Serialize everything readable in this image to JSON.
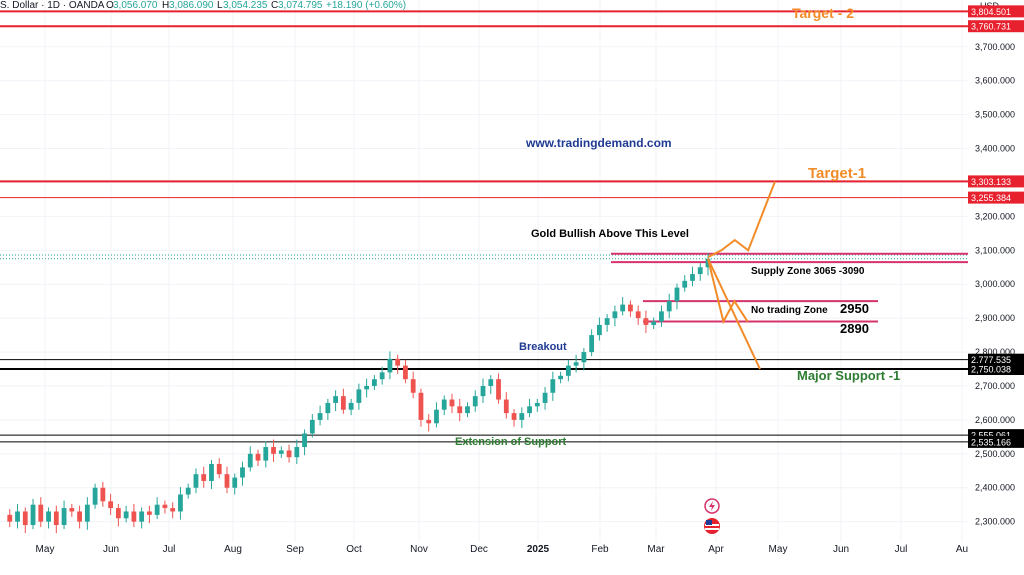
{
  "header": {
    "symbol_text": "S. Dollar · 1D · OANDA",
    "ohlc": {
      "open_label": "O",
      "open": "3,056.070",
      "high_label": "H",
      "high": "3,086.090",
      "low_label": "L",
      "low": "3,054.235",
      "close_label": "C",
      "close": "3,074.795",
      "change": "+18.190 (+0.60%)"
    }
  },
  "chart_data": {
    "type": "candlestick",
    "currency": "USD",
    "ylim": [
      2240,
      3840
    ],
    "y_ticks": [
      "3,700.000",
      "3,600.000",
      "3,500.000",
      "3,400.000",
      "3,300.000",
      "3,200.000",
      "3,100.000",
      "3,000.000",
      "2,900.000",
      "2,800.000",
      "2,700.000",
      "2,600.000",
      "2,500.000",
      "2,400.000",
      "2,300.000"
    ],
    "y_tick_values": [
      3700,
      3600,
      3500,
      3400,
      3300,
      3200,
      3100,
      3000,
      2900,
      2800,
      2700,
      2600,
      2500,
      2400,
      2300
    ],
    "x_ticks": [
      "May",
      "Jun",
      "Jul",
      "Aug",
      "Sep",
      "Oct",
      "Nov",
      "Dec",
      "2025",
      "Feb",
      "Mar",
      "Apr",
      "May",
      "Jun",
      "Jul",
      "Au"
    ],
    "x_tick_bold": [
      false,
      false,
      false,
      false,
      false,
      false,
      false,
      false,
      true,
      false,
      false,
      false,
      false,
      false,
      false,
      false
    ],
    "levels": [
      {
        "name": "target-2-upper",
        "value": 3804.501,
        "label": "3,804.501",
        "color": "#e8212e",
        "thickness": "thick"
      },
      {
        "name": "target-2-lower",
        "value": 3760.731,
        "label": "3,760.731",
        "color": "#e8212e",
        "thickness": "thick"
      },
      {
        "name": "target-1-upper",
        "value": 3303.133,
        "label": "3,303.133",
        "color": "#e8212e",
        "thickness": "thick"
      },
      {
        "name": "target-1-lower",
        "value": 3255.384,
        "label": "3,255.384",
        "color": "#e8212e",
        "thickness": "thin"
      },
      {
        "name": "breakout-upper",
        "value": 2777.535,
        "label": "2,777.535",
        "color": "#000000",
        "thickness": "thin"
      },
      {
        "name": "breakout-lower",
        "value": 2750.038,
        "label": "2,750.038",
        "color": "#000000",
        "thickness": "thick"
      },
      {
        "name": "support-upper",
        "value": 2555.061,
        "label": "2,555.061",
        "color": "#000000",
        "thickness": "thin"
      },
      {
        "name": "support-lower",
        "value": 2535.166,
        "label": "2,535.166",
        "color": "#000000",
        "thickness": "thin"
      }
    ],
    "zones": [
      {
        "name": "supply-zone",
        "top": 3090,
        "bottom": 3065,
        "color": "#d6336c"
      },
      {
        "name": "no-trading-zone",
        "top": 2950,
        "bottom": 2890,
        "color": "#d6336c"
      }
    ],
    "price_path": [
      2320,
      2300,
      2330,
      2290,
      2350,
      2300,
      2330,
      2290,
      2340,
      2330,
      2300,
      2350,
      2400,
      2360,
      2340,
      2310,
      2330,
      2300,
      2330,
      2320,
      2350,
      2340,
      2330,
      2380,
      2400,
      2440,
      2420,
      2470,
      2440,
      2400,
      2430,
      2460,
      2500,
      2480,
      2520,
      2500,
      2510,
      2490,
      2520,
      2560,
      2600,
      2620,
      2650,
      2670,
      2630,
      2650,
      2690,
      2700,
      2720,
      2740,
      2780,
      2760,
      2720,
      2680,
      2600,
      2590,
      2630,
      2660,
      2640,
      2620,
      2640,
      2670,
      2700,
      2720,
      2660,
      2620,
      2600,
      2620,
      2640,
      2650,
      2680,
      2720,
      2730,
      2760,
      2770,
      2800,
      2850,
      2880,
      2900,
      2920,
      2940,
      2920,
      2900,
      2880,
      2890,
      2920,
      2950,
      2990,
      3010,
      3030,
      3050,
      3075
    ],
    "projections": [
      {
        "name": "bullish-projection",
        "color": "#f28c28",
        "points": [
          [
            3080,
            0
          ],
          [
            3100,
            0.2
          ],
          [
            3130,
            0.4
          ],
          [
            3100,
            0.6
          ],
          [
            3303,
            1.0
          ]
        ]
      },
      {
        "name": "dip-projection",
        "color": "#f28c28",
        "points": [
          [
            3075,
            0
          ],
          [
            2890,
            0.35
          ],
          [
            2950,
            0.6
          ],
          [
            2890,
            0.9
          ]
        ]
      },
      {
        "name": "bearish-projection",
        "color": "#f28c28",
        "points": [
          [
            3075,
            0
          ],
          [
            2750,
            1.0
          ]
        ]
      }
    ]
  },
  "annotations": {
    "target2": "Target - 2",
    "target1": "Target-1",
    "website": "www.tradingdemand.com",
    "gold_bullish": "Gold  Bullish Above This Level",
    "supply_zone": "Supply Zone  3065 -3090",
    "no_trading": "No trading  Zone",
    "level_2950": "2950",
    "level_2890": "2890",
    "breakout": "Breakout",
    "major_support": "Major Support -1",
    "extension_support": "Extension of Support"
  },
  "colors": {
    "up": "#26a69a",
    "down": "#ef5350",
    "target": "#f28c28",
    "resistance": "#e8212e",
    "zone": "#d6336c",
    "link": "#1f3a93",
    "support_text": "#2e7d32",
    "grid": "#f0f3f7"
  },
  "icons": [
    "lightning-icon",
    "us-flag-icon"
  ]
}
